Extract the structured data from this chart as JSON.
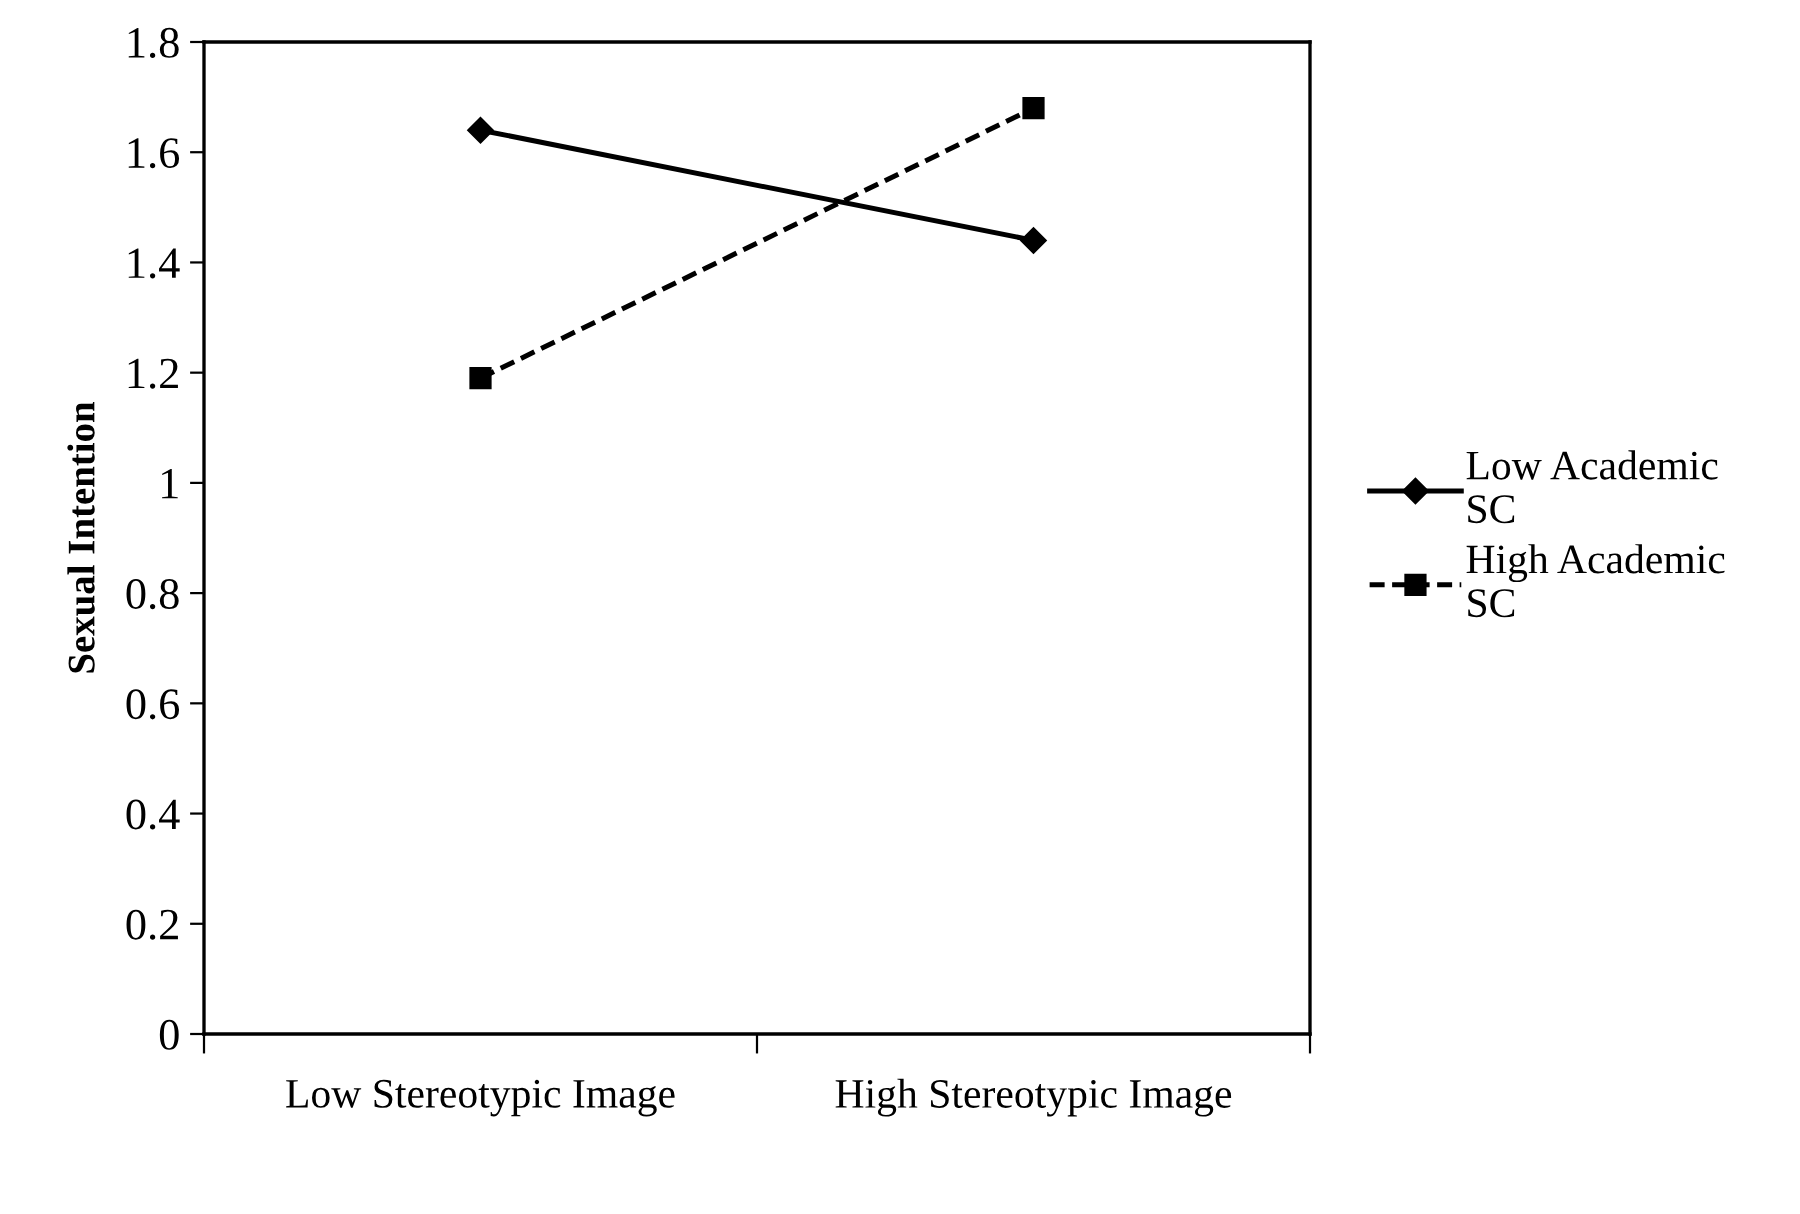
{
  "chart_data": {
    "type": "line",
    "ylabel": "Sexual Intention",
    "categories": [
      "Low Stereotypic Image",
      "High Stereotypic Image"
    ],
    "series": [
      {
        "name": "Low Academic SC",
        "color": "#000000",
        "values": [
          1.64,
          1.44
        ],
        "marker": "diamond",
        "line_style": "solid"
      },
      {
        "name": "High Academic SC",
        "color": "#000000",
        "values": [
          1.19,
          1.68
        ],
        "marker": "square",
        "line_style": "dashed"
      }
    ],
    "ylim": [
      0,
      1.8
    ],
    "yticks": [
      0,
      0.2,
      0.4,
      0.6,
      0.8,
      1,
      1.2,
      1.4,
      1.6,
      1.8
    ],
    "grid": false,
    "legend": "right"
  }
}
